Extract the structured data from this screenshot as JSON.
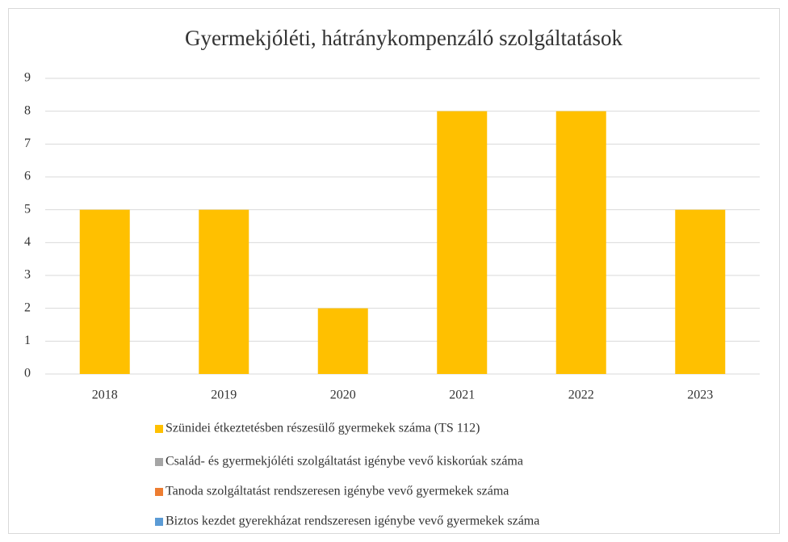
{
  "chart_data": {
    "type": "bar",
    "title": "Gyermekjóléti, hátránykompenzáló szolgáltatások",
    "categories": [
      "2018",
      "2019",
      "2020",
      "2021",
      "2022",
      "2023"
    ],
    "series": [
      {
        "name": "Szünidei étkeztetésben részesülő gyermekek száma (TS 112)",
        "color": "#ffc000",
        "values": [
          5,
          5,
          2,
          8,
          8,
          5
        ]
      },
      {
        "name": "Család- és gyermekjóléti szolgáltatást igénybe vevő kiskorúak száma",
        "color": "#a5a5a5",
        "values": [
          null,
          null,
          null,
          null,
          null,
          null
        ]
      },
      {
        "name": "Tanoda szolgáltatást rendszeresen igénybe vevő gyermekek száma",
        "color": "#ed7d31",
        "values": [
          null,
          null,
          null,
          null,
          null,
          null
        ]
      },
      {
        "name": "Biztos kezdet gyerekházat rendszeresen igénybe vevő gyermekek száma",
        "color": "#5b9bd5",
        "values": [
          null,
          null,
          null,
          null,
          null,
          null
        ]
      }
    ],
    "ylim": [
      0,
      9
    ],
    "yticks": [
      0,
      1,
      2,
      3,
      4,
      5,
      6,
      7,
      8,
      9
    ],
    "grid": true,
    "legend": "bottom"
  }
}
